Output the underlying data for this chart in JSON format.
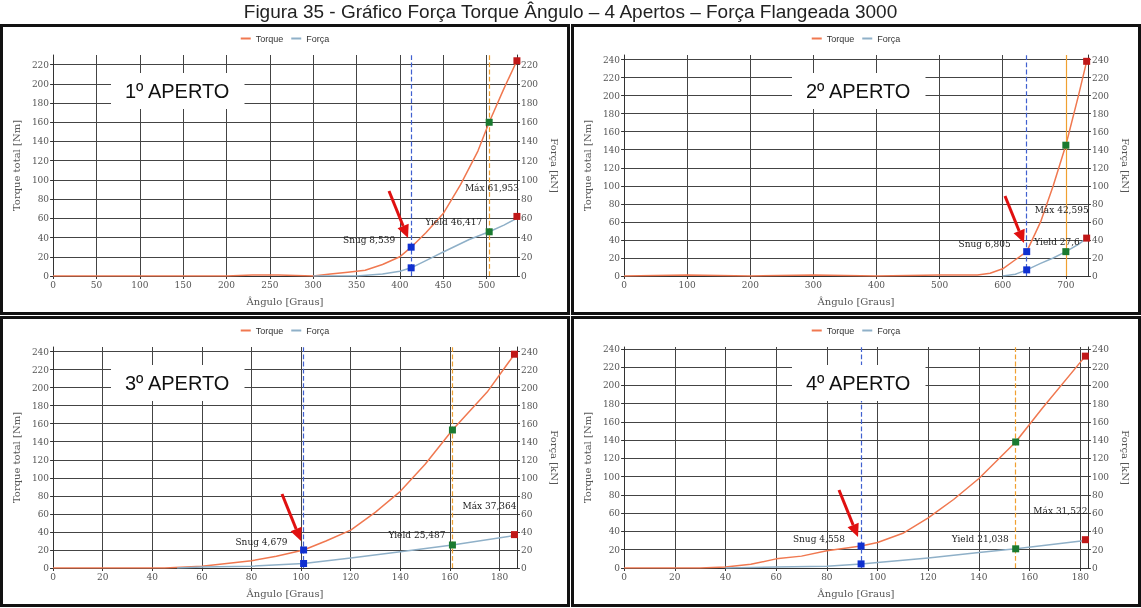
{
  "chart_data": [
    {
      "type": "line",
      "title": "Figura 35 - Gráfico Força Torque Ângulo – 4 Apertos – Força Flangeada 3000",
      "xlabel": "Ângulo [Graus]",
      "ylabel": "Torque total [Nm]",
      "y2label": "Força [kN]",
      "xlim": [
        0,
        535
      ],
      "xticks": [
        0,
        50,
        100,
        150,
        200,
        250,
        300,
        350,
        400,
        450,
        500
      ],
      "ylim": [
        0,
        230
      ],
      "yticks": [
        0,
        20,
        40,
        60,
        80,
        100,
        120,
        140,
        160,
        180,
        200,
        220
      ],
      "y2lim": [
        0,
        230
      ],
      "y2ticks": [
        0,
        20,
        40,
        60,
        80,
        100,
        120,
        140,
        160,
        180,
        200,
        220
      ],
      "grid": true,
      "legend": "top",
      "marker": "none",
      "series": [
        {
          "name": "Torque",
          "color": "#f07850",
          "x": [
            0,
            100,
            200,
            230,
            260,
            300,
            320,
            340,
            360,
            380,
            400,
            413,
            430,
            450,
            470,
            490,
            503,
            520,
            535
          ],
          "values": [
            0,
            0,
            0,
            1,
            1,
            0,
            2,
            4,
            6,
            12,
            20,
            30,
            45,
            65,
            95,
            130,
            160,
            195,
            224
          ]
        },
        {
          "name": "Força",
          "color": "#8fb0c8",
          "axis": "y2",
          "x": [
            300,
            350,
            380,
            400,
            413,
            430,
            450,
            480,
            503,
            520,
            535
          ],
          "values": [
            0,
            0,
            2,
            5,
            8.5,
            16,
            25,
            38,
            46,
            53,
            60
          ]
        },
        {
          "type": "scatter",
          "marker": "square",
          "x": [
            413,
            503,
            535
          ],
          "values": [
            30,
            160,
            224
          ],
          "colors": [
            "#1030d0",
            "#1a7a30",
            "#c01818"
          ]
        },
        {
          "type": "scatter",
          "marker": "square",
          "axis": "y2",
          "x": [
            413,
            503,
            535
          ],
          "values": [
            8.5,
            46,
            62
          ],
          "colors": [
            "#1030d0",
            "#1a7a30",
            "#c01818"
          ]
        }
      ],
      "ref_lines": [
        {
          "axis": "x",
          "value": 413,
          "color": "#4060d0",
          "line_style": "dashed"
        },
        {
          "axis": "x",
          "value": 503,
          "color": "#f0a030",
          "line_style": "dashed"
        }
      ],
      "annotations": [
        "1º APERTO",
        {
          "text": "Snug 8,539",
          "x": 413,
          "y": 30
        },
        {
          "text": "Yield 46,417",
          "x": 503,
          "y": 46
        },
        {
          "text": "Máx 61,953",
          "x": 535,
          "y": 62
        }
      ]
    },
    {
      "type": "line",
      "xlabel": "Ângulo [Graus]",
      "ylabel": "Torque total [Nm]",
      "y2label": "Força [kN]",
      "xlim": [
        0,
        735
      ],
      "xticks": [
        0,
        100,
        200,
        300,
        400,
        500,
        600,
        700
      ],
      "ylim": [
        0,
        245
      ],
      "yticks": [
        0,
        20,
        40,
        60,
        80,
        100,
        120,
        140,
        160,
        180,
        200,
        220,
        240
      ],
      "y2lim": [
        0,
        245
      ],
      "y2ticks": [
        0,
        20,
        40,
        60,
        80,
        100,
        120,
        140,
        160,
        180,
        200,
        220,
        240
      ],
      "grid": true,
      "legend": "top",
      "marker": "none",
      "series": [
        {
          "name": "Torque",
          "color": "#f07850",
          "x": [
            0,
            100,
            200,
            300,
            400,
            500,
            560,
            580,
            600,
            620,
            638,
            660,
            680,
            700,
            720,
            733
          ],
          "values": [
            0,
            1,
            0,
            1,
            0,
            1,
            1,
            3,
            8,
            18,
            27,
            60,
            100,
            145,
            200,
            238
          ]
        },
        {
          "name": "Força",
          "color": "#8fb0c8",
          "axis": "y2",
          "x": [
            600,
            620,
            638,
            660,
            680,
            700,
            720,
            733
          ],
          "values": [
            0,
            2,
            6.8,
            14,
            20,
            27,
            35,
            42
          ]
        },
        {
          "type": "scatter",
          "marker": "square",
          "x": [
            638,
            700,
            733
          ],
          "values": [
            27,
            145,
            238
          ],
          "colors": [
            "#1030d0",
            "#1a7a30",
            "#c01818"
          ]
        },
        {
          "type": "scatter",
          "marker": "square",
          "axis": "y2",
          "x": [
            638,
            700,
            733
          ],
          "values": [
            6.8,
            27,
            42
          ],
          "colors": [
            "#1030d0",
            "#1a7a30",
            "#c01818"
          ]
        }
      ],
      "ref_lines": [
        {
          "axis": "x",
          "value": 638,
          "color": "#4060d0",
          "line_style": "dashed"
        },
        {
          "axis": "x",
          "value": 700,
          "color": "#f0a030",
          "line_style": "solid"
        }
      ],
      "annotations": [
        "2º APERTO",
        {
          "text": "Snug 6,805",
          "x": 638,
          "y": 27
        },
        {
          "text": "Yield 27,6",
          "x": 700,
          "y": 27
        },
        {
          "text": "Máx 42,595",
          "x": 733,
          "y": 42
        }
      ]
    },
    {
      "type": "line",
      "xlabel": "Ângulo [Graus]",
      "ylabel": "Torque total [Nm]",
      "y2label": "Força [kN]",
      "xlim": [
        0,
        187
      ],
      "xticks": [
        0,
        20,
        40,
        60,
        80,
        100,
        120,
        140,
        160,
        180
      ],
      "ylim": [
        0,
        245
      ],
      "yticks": [
        0,
        20,
        40,
        60,
        80,
        100,
        120,
        140,
        160,
        180,
        200,
        220,
        240
      ],
      "y2lim": [
        0,
        245
      ],
      "y2ticks": [
        0,
        20,
        40,
        60,
        80,
        100,
        120,
        140,
        160,
        180,
        200,
        220,
        240
      ],
      "grid": true,
      "legend": "top",
      "marker": "none",
      "series": [
        {
          "name": "Torque",
          "color": "#f07850",
          "x": [
            0,
            45,
            60,
            70,
            80,
            90,
            101,
            110,
            120,
            130,
            140,
            150,
            161,
            175,
            186
          ],
          "values": [
            0,
            0,
            2,
            5,
            8,
            13,
            20,
            30,
            42,
            62,
            85,
            115,
            153,
            195,
            237
          ]
        },
        {
          "name": "Força",
          "color": "#8fb0c8",
          "axis": "y2",
          "x": [
            50,
            60,
            80,
            101,
            120,
            140,
            161,
            186
          ],
          "values": [
            0,
            1,
            2,
            5,
            11,
            18,
            25.5,
            36
          ]
        },
        {
          "type": "scatter",
          "marker": "square",
          "x": [
            101,
            161,
            186
          ],
          "values": [
            20,
            153,
            237
          ],
          "colors": [
            "#1030d0",
            "#1a7a30",
            "#c01818"
          ]
        },
        {
          "type": "scatter",
          "marker": "square",
          "axis": "y2",
          "x": [
            101,
            161,
            186
          ],
          "values": [
            5,
            25.5,
            37
          ],
          "colors": [
            "#1030d0",
            "#1a7a30",
            "#c01818"
          ]
        }
      ],
      "ref_lines": [
        {
          "axis": "x",
          "value": 101,
          "color": "#4060d0",
          "line_style": "dashed"
        },
        {
          "axis": "x",
          "value": 161,
          "color": "#f0a030",
          "line_style": "dashed"
        }
      ],
      "annotations": [
        "3º APERTO",
        {
          "text": "Snug 4,679",
          "x": 101,
          "y": 20
        },
        {
          "text": "Yield 25,487",
          "x": 161,
          "y": 25.5
        },
        {
          "text": "Máx 37,364",
          "x": 186,
          "y": 37
        }
      ]
    },
    {
      "type": "line",
      "xlabel": "Ângulo [Graus]",
      "ylabel": "Torque total [Nm]",
      "y2label": "Força [kN]",
      "xlim": [
        0,
        183
      ],
      "xticks": [
        0,
        20,
        40,
        60,
        80,
        100,
        120,
        140,
        160,
        180
      ],
      "ylim": [
        0,
        242
      ],
      "yticks": [
        0,
        20,
        40,
        60,
        80,
        100,
        120,
        140,
        160,
        180,
        200,
        220,
        240
      ],
      "y2lim": [
        0,
        242
      ],
      "y2ticks": [
        0,
        20,
        40,
        60,
        80,
        100,
        120,
        140,
        160,
        180,
        200,
        220,
        240
      ],
      "grid": true,
      "legend": "top",
      "marker": "none",
      "series": [
        {
          "name": "Torque",
          "color": "#f07850",
          "x": [
            0,
            30,
            40,
            50,
            60,
            70,
            80,
            93.5,
            100,
            110,
            120,
            130,
            140,
            154.5,
            165,
            182
          ],
          "values": [
            0,
            0,
            1,
            4,
            10,
            13,
            19,
            24,
            28,
            38,
            55,
            75,
            98,
            138,
            175,
            232
          ]
        },
        {
          "name": "Força",
          "color": "#8fb0c8",
          "axis": "y2",
          "x": [
            40,
            60,
            80,
            93.5,
            100,
            120,
            140,
            154.5,
            182
          ],
          "values": [
            0,
            1,
            2,
            4.5,
            6,
            11,
            17,
            21,
            30
          ]
        },
        {
          "type": "scatter",
          "marker": "square",
          "x": [
            93.5,
            154.5,
            182
          ],
          "values": [
            24,
            138,
            232
          ],
          "colors": [
            "#1030d0",
            "#1a7a30",
            "#c01818"
          ]
        },
        {
          "type": "scatter",
          "marker": "square",
          "axis": "y2",
          "x": [
            93.5,
            154.5,
            182
          ],
          "values": [
            4.5,
            21,
            31
          ],
          "colors": [
            "#1030d0",
            "#1a7a30",
            "#c01818"
          ]
        }
      ],
      "ref_lines": [
        {
          "axis": "x",
          "value": 93.5,
          "color": "#4060d0",
          "line_style": "dashed"
        },
        {
          "axis": "x",
          "value": 154.5,
          "color": "#f0a030",
          "line_style": "dashed"
        }
      ],
      "annotations": [
        "4º APERTO",
        {
          "text": "Snug 4,558",
          "x": 93.5,
          "y": 24
        },
        {
          "text": "Yield 21,038",
          "x": 154.5,
          "y": 21
        },
        {
          "text": "Máx 31,522",
          "x": 182,
          "y": 31
        }
      ]
    }
  ]
}
